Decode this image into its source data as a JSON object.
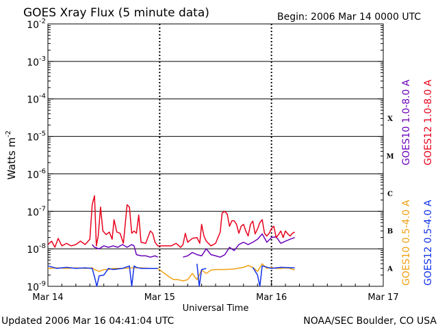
{
  "chart_data": {
    "type": "line",
    "title": "GOES Xray Flux (5 minute data)",
    "begin_label": "Begin:  2006 Mar 14 0000 UTC",
    "xlabel": "Universal Time",
    "ylabel": "Watts m",
    "ylabel_exp": "-2",
    "yscale": "log",
    "ylim": [
      1e-09,
      0.01
    ],
    "xlim": [
      0,
      72
    ],
    "x_units": "hours since 2006 Mar 14 0000 UTC",
    "x_ticks": [
      {
        "x": 0,
        "label": "Mar 14"
      },
      {
        "x": 24,
        "label": "Mar 15"
      },
      {
        "x": 48,
        "label": "Mar 16"
      },
      {
        "x": 72,
        "label": "Mar 17"
      }
    ],
    "y_ticks": [
      {
        "exp": -2,
        "base": "10",
        "power": "-2"
      },
      {
        "exp": -3,
        "base": "10",
        "power": "-3"
      },
      {
        "exp": -4,
        "base": "10",
        "power": "-4"
      },
      {
        "exp": -5,
        "base": "10",
        "power": "-5"
      },
      {
        "exp": -6,
        "base": "10",
        "power": "-6"
      },
      {
        "exp": -7,
        "base": "10",
        "power": "-7"
      },
      {
        "exp": -8,
        "base": "10",
        "power": "-8"
      },
      {
        "exp": -9,
        "base": "10",
        "power": "-9"
      }
    ],
    "flare_classes": [
      {
        "label": "X",
        "exp": -4
      },
      {
        "label": "M",
        "exp": -5
      },
      {
        "label": "C",
        "exp": -6
      },
      {
        "label": "B",
        "exp": -7
      },
      {
        "label": "A",
        "exp": -8
      }
    ],
    "grid": "horizontal lines at each decade from 1e-8 to 1e-3; dashed vertical day lines",
    "legend_placement": "right side, vertical text",
    "series": [
      {
        "name": "GOES12 1.0-8.0 A",
        "color": "#e8001c",
        "points": [
          [
            0,
            1.3e-08
          ],
          [
            0.8,
            1.6e-08
          ],
          [
            1.5,
            1.1e-08
          ],
          [
            2.2,
            1.9e-08
          ],
          [
            3,
            1.2e-08
          ],
          [
            4,
            1.4e-08
          ],
          [
            5,
            1.2e-08
          ],
          [
            6,
            1.3e-08
          ],
          [
            7,
            1.6e-08
          ],
          [
            8,
            1.3e-08
          ],
          [
            9,
            1.8e-08
          ],
          [
            9.5,
            1.5e-07
          ],
          [
            10,
            2.6e-07
          ],
          [
            10.4,
            1.2e-08
          ],
          [
            10.8,
            2.2e-08
          ],
          [
            11.3,
            1.3e-07
          ],
          [
            11.8,
            3e-08
          ],
          [
            12.5,
            2.4e-08
          ],
          [
            13.2,
            2.8e-08
          ],
          [
            13.8,
            1.8e-08
          ],
          [
            14.2,
            6e-08
          ],
          [
            14.8,
            2.8e-08
          ],
          [
            15.5,
            2.6e-08
          ],
          [
            16.2,
            1.4e-08
          ],
          [
            17,
            1.5e-07
          ],
          [
            17.5,
            1.3e-07
          ],
          [
            18,
            2.6e-08
          ],
          [
            18.5,
            3e-08
          ],
          [
            19,
            2.6e-08
          ],
          [
            19.5,
            8e-08
          ],
          [
            20,
            1.5e-08
          ],
          [
            21,
            1.4e-08
          ],
          [
            22,
            3e-08
          ],
          [
            22.5,
            2.6e-08
          ],
          [
            23,
            1.5e-08
          ],
          [
            23.6,
            1.2e-08
          ],
          [
            26.5,
            1.2e-08
          ],
          [
            27.5,
            1.4e-08
          ],
          [
            28.5,
            1.1e-08
          ],
          [
            29,
            1.3e-08
          ],
          [
            29.5,
            2.6e-08
          ],
          [
            30,
            1.5e-08
          ],
          [
            31,
            1.9e-08
          ],
          [
            32,
            2e-08
          ],
          [
            32.6,
            1.4e-08
          ],
          [
            33,
            4.5e-08
          ],
          [
            33.5,
            2.2e-08
          ],
          [
            34,
            1.6e-08
          ],
          [
            35,
            1.2e-08
          ],
          [
            36,
            1.4e-08
          ],
          [
            37,
            2.8e-08
          ],
          [
            37.4,
            9e-08
          ],
          [
            38,
            1e-07
          ],
          [
            38.5,
            8.5e-08
          ],
          [
            39,
            4e-08
          ],
          [
            39.5,
            5.6e-08
          ],
          [
            40,
            5.6e-08
          ],
          [
            40.5,
            4.5e-08
          ],
          [
            41,
            2.6e-08
          ],
          [
            41.5,
            4e-08
          ],
          [
            42,
            4.5e-08
          ],
          [
            42.5,
            3e-08
          ],
          [
            43,
            2.2e-08
          ],
          [
            43.5,
            4.5e-08
          ],
          [
            44,
            5.5e-08
          ],
          [
            44.5,
            2.5e-08
          ],
          [
            45,
            3.4e-08
          ],
          [
            45.5,
            5e-08
          ],
          [
            46,
            6e-08
          ],
          [
            46.5,
            2.6e-08
          ],
          [
            47,
            2.2e-08
          ],
          [
            47.5,
            2.6e-08
          ],
          [
            48,
            3.5e-08
          ],
          [
            48.5,
            4e-08
          ],
          [
            49,
            2e-08
          ],
          [
            49.5,
            2.4e-08
          ],
          [
            50,
            3e-08
          ],
          [
            50.5,
            2e-08
          ],
          [
            51,
            3e-08
          ],
          [
            51.5,
            2.5e-08
          ],
          [
            52,
            2.2e-08
          ],
          [
            52.5,
            2.6e-08
          ],
          [
            53,
            2.8e-08
          ]
        ]
      },
      {
        "name": "GOES10 1.0-8.0 A",
        "color": "#6a00b8",
        "points": [
          [
            9.5,
            1.3e-08
          ],
          [
            10,
            1.1e-08
          ],
          [
            11,
            1e-08
          ],
          [
            12,
            1.2e-08
          ],
          [
            13,
            1.1e-08
          ],
          [
            14,
            1.2e-08
          ],
          [
            15,
            1.1e-08
          ],
          [
            16,
            1.3e-08
          ],
          [
            17,
            1.1e-08
          ],
          [
            18,
            1.3e-08
          ],
          [
            18.5,
            1.2e-08
          ],
          [
            19,
            7e-09
          ],
          [
            20,
            6.5e-09
          ],
          [
            21,
            6.5e-09
          ],
          [
            22,
            6e-09
          ],
          [
            23,
            6.5e-09
          ],
          [
            23.6,
            6e-09
          ],
          [
            29,
            6e-09
          ],
          [
            30,
            6.5e-09
          ],
          [
            31,
            8e-09
          ],
          [
            32,
            7e-09
          ],
          [
            33,
            6.5e-09
          ],
          [
            34,
            1e-08
          ],
          [
            35,
            7e-09
          ],
          [
            36,
            6.5e-09
          ],
          [
            37,
            6e-09
          ],
          [
            38,
            7e-09
          ],
          [
            39,
            1.1e-08
          ],
          [
            40,
            9e-09
          ],
          [
            41,
            1.3e-08
          ],
          [
            42,
            1.5e-08
          ],
          [
            43,
            1.3e-08
          ],
          [
            44,
            1.5e-08
          ],
          [
            45,
            1.8e-08
          ],
          [
            46,
            2.5e-08
          ],
          [
            47,
            1.5e-08
          ],
          [
            48,
            2e-08
          ],
          [
            49,
            2.1e-08
          ],
          [
            50,
            1.4e-08
          ],
          [
            51,
            1.6e-08
          ],
          [
            52,
            1.8e-08
          ],
          [
            53,
            2e-08
          ]
        ]
      },
      {
        "name": "GOES10 0.5-4.0 A",
        "color": "#f0a010",
        "points": [
          [
            0,
            3e-09
          ],
          [
            2,
            3.1e-09
          ],
          [
            4,
            3e-09
          ],
          [
            6,
            3.1e-09
          ],
          [
            8,
            3e-09
          ],
          [
            9.5,
            3.1e-09
          ],
          [
            10,
            2.8e-09
          ],
          [
            11,
            2.5e-09
          ],
          [
            12,
            2.8e-09
          ],
          [
            13,
            2.8e-09
          ],
          [
            14,
            3e-09
          ],
          [
            16,
            3e-09
          ],
          [
            18,
            3.1e-09
          ],
          [
            20,
            3.1e-09
          ],
          [
            22,
            3e-09
          ],
          [
            23.6,
            3e-09
          ],
          [
            26,
            1.8e-09
          ],
          [
            27,
            1.5e-09
          ],
          [
            28,
            1.5e-09
          ],
          [
            29,
            1.4e-09
          ],
          [
            30,
            1.5e-09
          ],
          [
            31,
            2.2e-09
          ],
          [
            32,
            1.5e-09
          ],
          [
            33,
            2.7e-09
          ],
          [
            34,
            2.2e-09
          ],
          [
            35,
            2.7e-09
          ],
          [
            36,
            2.8e-09
          ],
          [
            38,
            2.8e-09
          ],
          [
            40,
            2.9e-09
          ],
          [
            42,
            3.2e-09
          ],
          [
            43,
            3.6e-09
          ],
          [
            44,
            3.2e-09
          ],
          [
            45,
            2.5e-09
          ],
          [
            46,
            4e-09
          ],
          [
            47,
            3e-09
          ],
          [
            48,
            3.2e-09
          ],
          [
            49,
            3e-09
          ],
          [
            50,
            3e-09
          ],
          [
            51,
            3.1e-09
          ],
          [
            52,
            3e-09
          ],
          [
            53,
            2.7e-09
          ]
        ]
      },
      {
        "name": "GOES12 0.5-4.0 A",
        "color": "#1030e8",
        "points": [
          [
            0,
            3.5e-09
          ],
          [
            2,
            3e-09
          ],
          [
            4,
            3.2e-09
          ],
          [
            6,
            3e-09
          ],
          [
            8,
            3.1e-09
          ],
          [
            9.5,
            3e-09
          ],
          [
            10,
            1.8e-09
          ],
          [
            10.5,
            1e-09
          ],
          [
            11,
            1.9e-09
          ],
          [
            12,
            2e-09
          ],
          [
            13,
            3e-09
          ],
          [
            14,
            2.8e-09
          ],
          [
            16,
            3e-09
          ],
          [
            17.5,
            3.5e-09
          ],
          [
            18,
            1e-09
          ],
          [
            18.5,
            3.5e-09
          ],
          [
            19,
            3.2e-09
          ],
          [
            20,
            3e-09
          ],
          [
            22,
            3e-09
          ],
          [
            23.6,
            3e-09
          ],
          [
            32,
            4e-09
          ],
          [
            32.5,
            1e-09
          ],
          [
            33,
            2.8e-09
          ],
          [
            34,
            3e-09
          ],
          [
            38,
            3.1e-09
          ],
          [
            44,
            3.2e-09
          ],
          [
            45,
            2e-09
          ],
          [
            45.5,
            1e-09
          ],
          [
            46,
            3.5e-09
          ],
          [
            48,
            3e-09
          ],
          [
            50,
            3.2e-09
          ],
          [
            53,
            3.1e-09
          ]
        ]
      }
    ]
  },
  "footer": {
    "updated": "Updated 2006 Mar 16 04:41:04 UTC",
    "credit": "NOAA/SEC Boulder, CO USA"
  }
}
